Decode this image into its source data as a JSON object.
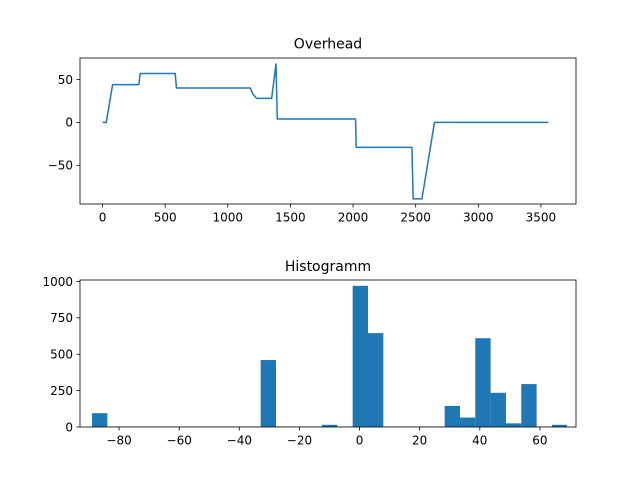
{
  "chart_data": [
    {
      "type": "line",
      "title": "Overhead",
      "xlabel": "",
      "ylabel": "",
      "xlim": [
        -180,
        3780
      ],
      "ylim": [
        -95,
        75
      ],
      "xticks": [
        0,
        500,
        1000,
        1500,
        2000,
        2500,
        3000,
        3500
      ],
      "yticks": [
        -50,
        0,
        50
      ],
      "grid": false,
      "color": "#1f77b4",
      "series": [
        {
          "x": [
            0,
            30,
            80,
            290,
            300,
            580,
            590,
            1180,
            1200,
            1230,
            1350,
            1385,
            1395,
            2020,
            2025,
            2470,
            2480,
            2550,
            2650,
            3560
          ],
          "y": [
            0,
            0,
            44,
            44,
            57,
            57,
            40,
            40,
            33,
            28,
            28,
            68,
            4,
            4,
            -29,
            -29,
            -89,
            -89,
            0,
            0
          ]
        }
      ]
    },
    {
      "type": "bar",
      "title": "Histogramm",
      "xlabel": "",
      "ylabel": "",
      "xlim": [
        -93,
        72
      ],
      "ylim": [
        0,
        1010
      ],
      "xticks": [
        -80,
        -60,
        -40,
        -20,
        0,
        20,
        40,
        60
      ],
      "yticks": [
        0,
        250,
        500,
        750,
        1000
      ],
      "grid": false,
      "color": "#1f77b4",
      "bin_edges": [
        -89,
        -83.9,
        -78.8,
        -73.7,
        -68.6,
        -63.5,
        -58.4,
        -53.3,
        -48.2,
        -43.1,
        -38,
        -32.9,
        -27.8,
        -22.7,
        -17.6,
        -12.5,
        -7.4,
        -2.3,
        2.8,
        7.9,
        13,
        18.1,
        23.2,
        28.3,
        33.4,
        38.5,
        43.6,
        48.7,
        53.8,
        58.9,
        64,
        69
      ],
      "values": [
        95,
        3,
        3,
        3,
        3,
        3,
        3,
        3,
        3,
        3,
        3,
        460,
        3,
        3,
        3,
        15,
        3,
        970,
        645,
        3,
        3,
        3,
        3,
        145,
        65,
        610,
        235,
        25,
        295,
        3,
        15
      ]
    }
  ]
}
